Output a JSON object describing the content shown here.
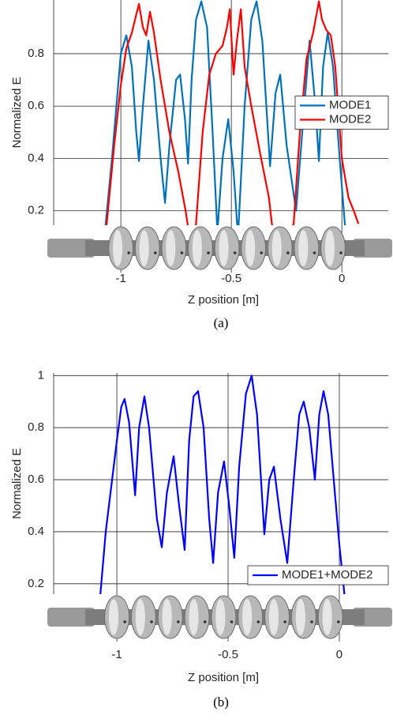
{
  "chart_data": [
    {
      "type": "line",
      "caption": "(a)",
      "xlabel": "Z position [m]",
      "ylabel": "Normalized E",
      "xlim": [
        -1.304,
        0.21
      ],
      "ylim": [
        0.145,
        1.005
      ],
      "xticks": [
        -1,
        -0.5,
        0
      ],
      "yticks": [
        0.2,
        0.4,
        0.6,
        0.8
      ],
      "grid": true,
      "legend": "right",
      "series": [
        {
          "name": "MODE1",
          "color": "#0072bd",
          "x": [
            -1.08,
            -1.04,
            -1.0,
            -0.975,
            -0.95,
            -0.93,
            -0.918,
            -0.9,
            -0.875,
            -0.85,
            -0.82,
            -0.8,
            -0.78,
            -0.75,
            -0.732,
            -0.71,
            -0.696,
            -0.68,
            -0.66,
            -0.636,
            -0.61,
            -0.585,
            -0.563,
            -0.54,
            -0.514,
            -0.49,
            -0.47,
            -0.44,
            -0.41,
            -0.386,
            -0.36,
            -0.325,
            -0.3,
            -0.279,
            -0.25,
            -0.207,
            -0.17,
            -0.146,
            -0.12,
            -0.104,
            -0.085,
            -0.064,
            -0.04,
            -0.01,
            0.02
          ],
          "values": [
            0.05,
            0.4,
            0.8,
            0.87,
            0.75,
            0.5,
            0.39,
            0.6,
            0.85,
            0.7,
            0.4,
            0.23,
            0.45,
            0.7,
            0.72,
            0.55,
            0.38,
            0.7,
            0.93,
            1.0,
            0.9,
            0.5,
            0.12,
            0.4,
            0.55,
            0.35,
            0.1,
            0.6,
            0.93,
            1.0,
            0.85,
            0.37,
            0.65,
            0.72,
            0.45,
            0.2,
            0.6,
            0.85,
            0.6,
            0.39,
            0.75,
            0.88,
            0.75,
            0.4,
            0.08
          ]
        },
        {
          "name": "MODE2",
          "color": "#ff0000",
          "x": [
            -1.08,
            -1.064,
            -1.03,
            -1.0,
            -0.975,
            -0.95,
            -0.93,
            -0.918,
            -0.9,
            -0.885,
            -0.868,
            -0.85,
            -0.82,
            -0.78,
            -0.74,
            -0.707,
            -0.68,
            -0.66,
            -0.63,
            -0.6,
            -0.57,
            -0.54,
            -0.52,
            -0.507,
            -0.49,
            -0.475,
            -0.457,
            -0.44,
            -0.41,
            -0.37,
            -0.33,
            -0.31,
            -0.27,
            -0.218,
            -0.19,
            -0.16,
            -0.13,
            -0.104,
            -0.09,
            -0.07,
            -0.05,
            -0.03,
            0.0,
            0.03,
            0.054,
            0.075
          ],
          "values": [
            0.05,
            0.15,
            0.45,
            0.68,
            0.82,
            0.88,
            0.95,
            0.99,
            0.9,
            0.87,
            0.96,
            0.88,
            0.7,
            0.5,
            0.35,
            0.2,
            0.05,
            0.15,
            0.5,
            0.72,
            0.8,
            0.83,
            0.9,
            0.97,
            0.72,
            0.85,
            0.97,
            0.75,
            0.6,
            0.42,
            0.25,
            0.1,
            0.05,
            0.15,
            0.5,
            0.78,
            0.88,
            1.0,
            0.93,
            0.89,
            0.87,
            0.75,
            0.4,
            0.25,
            0.2,
            0.15
          ]
        }
      ]
    },
    {
      "type": "line",
      "caption": "(b)",
      "xlabel": "Z position [m]",
      "ylabel": "Normalized E",
      "xlim": [
        -1.284,
        0.22
      ],
      "ylim": [
        0.16,
        1.01
      ],
      "xticks": [
        -1,
        -0.5,
        0
      ],
      "yticks": [
        0.2,
        0.4,
        0.6,
        0.8,
        1
      ],
      "grid": true,
      "legend": "lower right",
      "series": [
        {
          "name": "MODE1+MODE2",
          "color": "#0000ff",
          "x": [
            -1.08,
            -1.05,
            -1.0,
            -0.98,
            -0.965,
            -0.945,
            -0.918,
            -0.9,
            -0.876,
            -0.855,
            -0.82,
            -0.798,
            -0.775,
            -0.745,
            -0.72,
            -0.695,
            -0.675,
            -0.655,
            -0.635,
            -0.61,
            -0.585,
            -0.567,
            -0.545,
            -0.518,
            -0.495,
            -0.472,
            -0.45,
            -0.42,
            -0.394,
            -0.37,
            -0.337,
            -0.315,
            -0.294,
            -0.265,
            -0.234,
            -0.205,
            -0.18,
            -0.16,
            -0.135,
            -0.11,
            -0.09,
            -0.071,
            -0.05,
            -0.02,
            0.0,
            0.018,
            0.03
          ],
          "values": [
            0.1,
            0.4,
            0.75,
            0.88,
            0.91,
            0.82,
            0.54,
            0.8,
            0.92,
            0.8,
            0.45,
            0.34,
            0.55,
            0.69,
            0.5,
            0.33,
            0.75,
            0.92,
            0.94,
            0.8,
            0.45,
            0.28,
            0.55,
            0.67,
            0.5,
            0.3,
            0.65,
            0.93,
            1.0,
            0.85,
            0.39,
            0.6,
            0.65,
            0.45,
            0.28,
            0.6,
            0.85,
            0.9,
            0.8,
            0.6,
            0.85,
            0.94,
            0.85,
            0.55,
            0.35,
            0.2,
            0.1
          ]
        }
      ]
    }
  ]
}
